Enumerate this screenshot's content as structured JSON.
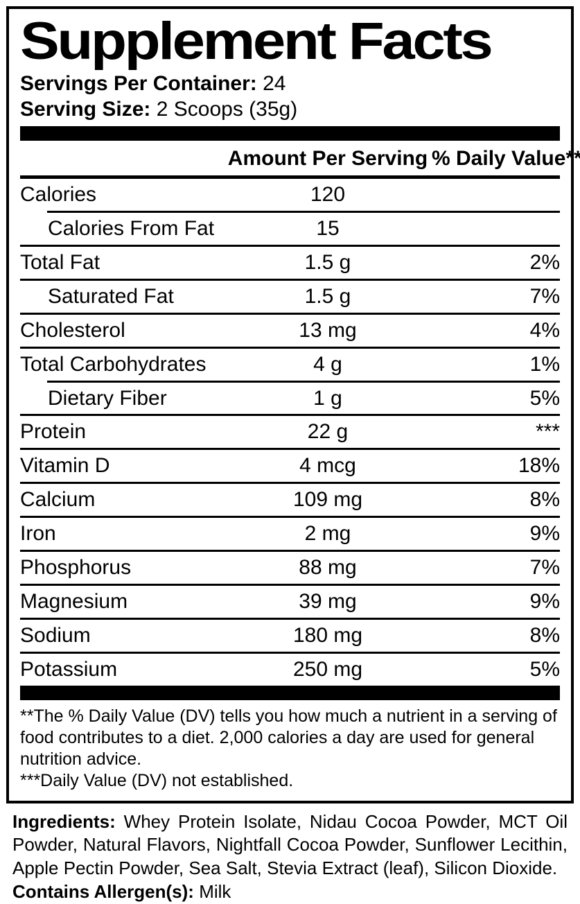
{
  "title": "Supplement Facts",
  "serving_info": {
    "servings_per_container": {
      "label": "Servings Per Container:",
      "value": "24"
    },
    "serving_size": {
      "label": "Serving Size:",
      "value": "2 Scoops (35g)"
    }
  },
  "table": {
    "columns": {
      "amount_header": "Amount Per Serving",
      "dv_header": "% Daily Value**"
    },
    "rows": [
      {
        "name": "Calories",
        "amount": "120",
        "dv": ""
      },
      {
        "name": "Calories From Fat",
        "amount": "15",
        "dv": ""
      },
      {
        "name": "Total Fat",
        "amount": "1.5 g",
        "dv": "2%"
      },
      {
        "name": "Saturated Fat",
        "amount": "1.5 g",
        "dv": "7%"
      },
      {
        "name": "Cholesterol",
        "amount": "13 mg",
        "dv": "4%"
      },
      {
        "name": "Total Carbohydrates",
        "amount": "4 g",
        "dv": "1%"
      },
      {
        "name": "Dietary Fiber",
        "amount": "1 g",
        "dv": "5%"
      },
      {
        "name": "Protein",
        "amount": "22 g",
        "dv": "***"
      },
      {
        "name": "Vitamin D",
        "amount": "4 mcg",
        "dv": "18%"
      },
      {
        "name": "Calcium",
        "amount": "109 mg",
        "dv": "8%"
      },
      {
        "name": "Iron",
        "amount": "2 mg",
        "dv": "9%"
      },
      {
        "name": "Phosphorus",
        "amount": "88 mg",
        "dv": "7%"
      },
      {
        "name": "Magnesium",
        "amount": "39 mg",
        "dv": "9%"
      },
      {
        "name": "Sodium",
        "amount": "180 mg",
        "dv": "8%"
      },
      {
        "name": "Potassium",
        "amount": "250 mg",
        "dv": "5%"
      }
    ]
  },
  "footnotes": {
    "dv_note": "**The % Daily Value (DV) tells you how much a nutrient in a serving of food contributes to a diet. 2,000 calories a day are used for general nutrition advice.",
    "not_established_note": "***Daily Value (DV) not established."
  },
  "ingredients": {
    "label": "Ingredients:",
    "text": "Whey Protein Isolate, Nidau Cocoa Powder, MCT Oil Powder, Natural Flavors, Nightfall Cocoa Powder, Sunflower Lecithin, Apple Pectin Powder, Sea Salt, Stevia Extract (leaf), Silicon Dioxide.",
    "allergen_label": "Contains Allergen(s):",
    "allergen_value": "Milk"
  },
  "colors": {
    "text": "#000000",
    "background": "#ffffff",
    "rule": "#000000"
  }
}
